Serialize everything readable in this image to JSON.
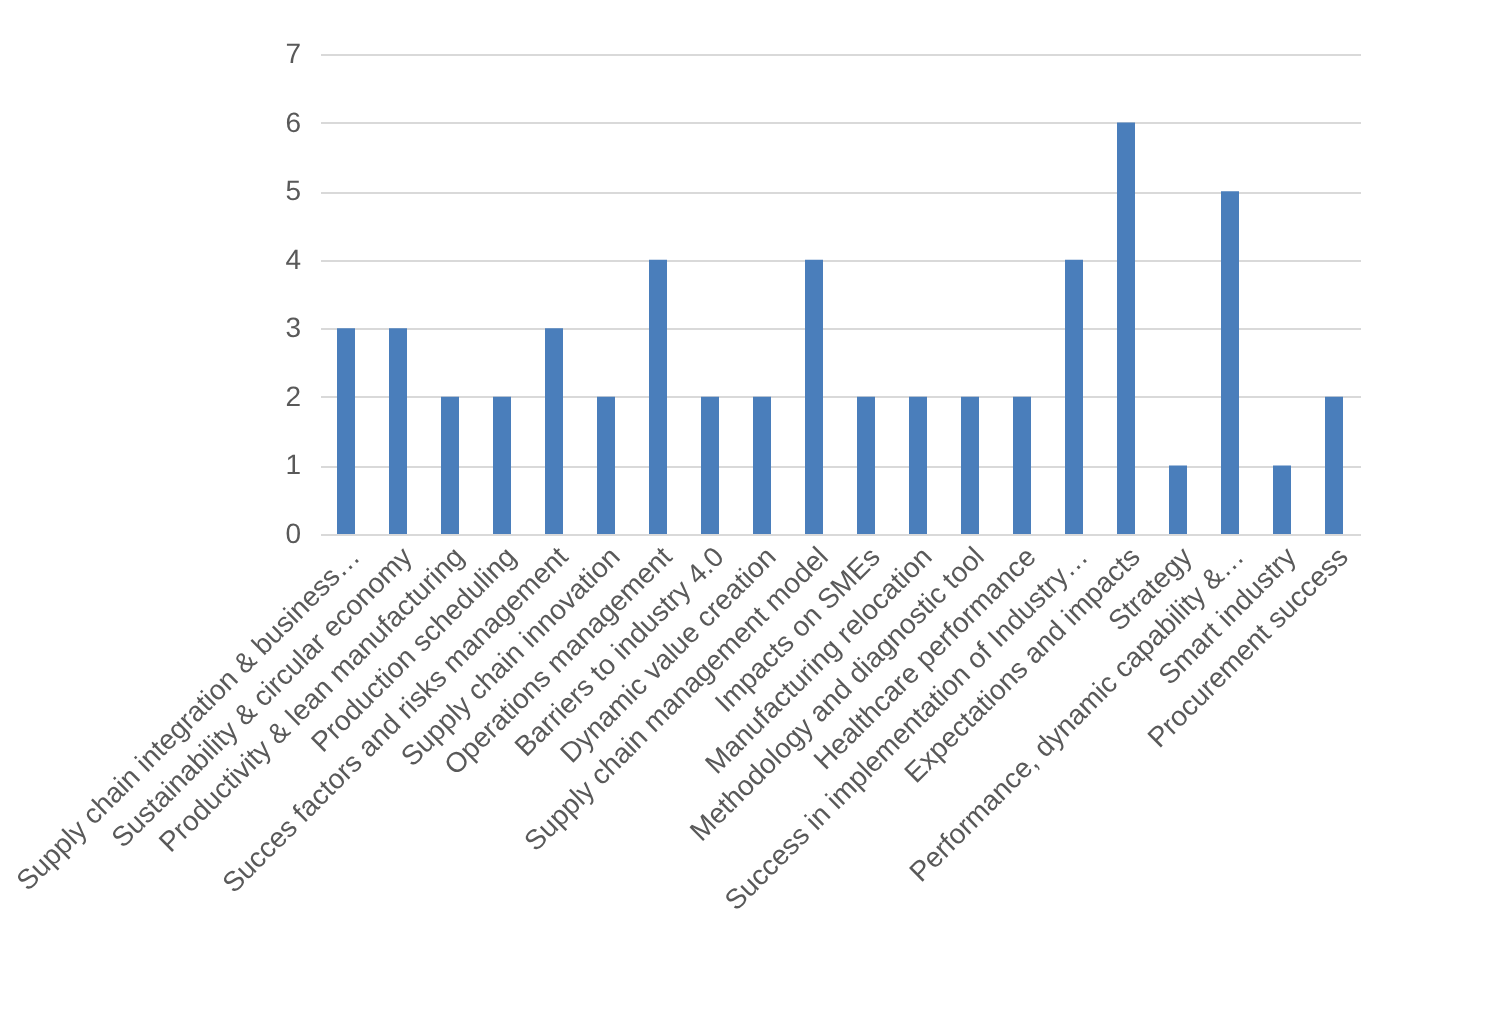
{
  "chart_data": {
    "type": "bar",
    "categories": [
      "Supply chain integration & business…",
      "Sustainability & circular economy",
      "Productivity & lean manufacturing",
      "Production scheduling",
      "Succes factors and risks management",
      "Supply chain innovation",
      "Operations management",
      "Barriers to industry 4.0",
      "Dynamic value creation",
      "Supply chain management model",
      "Impacts on SMEs",
      "Manufacturing relocation",
      "Methodology and diagnostic tool",
      "Healthcare performance",
      "Success in implementation of Industry…",
      "Expectations and impacts",
      "Strategy",
      "Performance, dynamic capability &…",
      "Smart industry",
      "Procurement success"
    ],
    "values": [
      3,
      3,
      2,
      2,
      3,
      2,
      4,
      2,
      2,
      4,
      2,
      2,
      2,
      2,
      4,
      6,
      1,
      5,
      1,
      2
    ],
    "color": "#4a7ebb",
    "ylim": [
      0,
      7
    ],
    "yticks": [
      0,
      1,
      2,
      3,
      4,
      5,
      6,
      7
    ],
    "grid": "y"
  }
}
